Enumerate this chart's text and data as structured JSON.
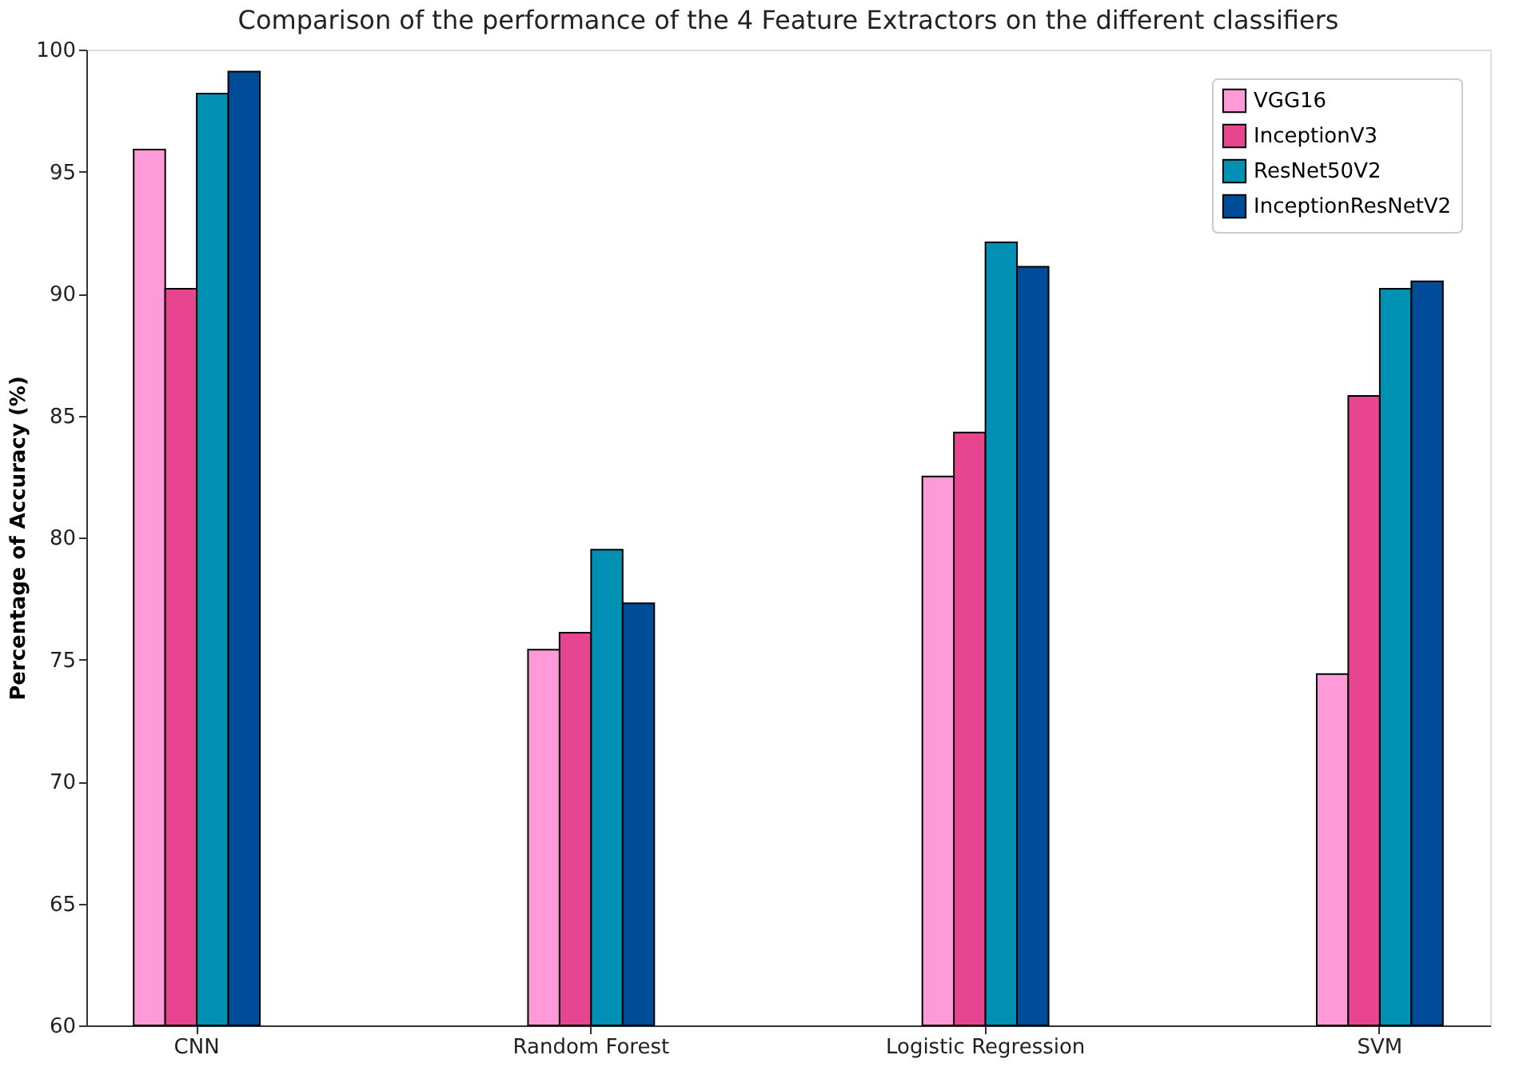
{
  "chart_data": {
    "type": "bar",
    "title": "Comparison of the performance of the 4 Feature Extractors on the different classifiers",
    "ylabel": "Percentage of Accuracy (%)",
    "categories": [
      "CNN",
      "Random Forest",
      "Logistic Regression",
      "SVM"
    ],
    "series": [
      {
        "name": "VGG16",
        "color": "#ff9ad8",
        "values": [
          95.9,
          75.4,
          82.5,
          74.4
        ]
      },
      {
        "name": "InceptionV3",
        "color": "#e84590",
        "values": [
          90.2,
          76.1,
          84.3,
          85.8
        ]
      },
      {
        "name": "ResNet50V2",
        "color": "#0090b4",
        "values": [
          98.2,
          79.5,
          92.1,
          90.2
        ]
      },
      {
        "name": "InceptionResNetV2",
        "color": "#004c99",
        "values": [
          99.1,
          77.3,
          91.1,
          90.5
        ]
      }
    ],
    "ylim": [
      60,
      100
    ],
    "yticks": [
      60,
      65,
      70,
      75,
      80,
      85,
      90,
      95,
      100
    ],
    "grid": false,
    "legend": "top right"
  }
}
